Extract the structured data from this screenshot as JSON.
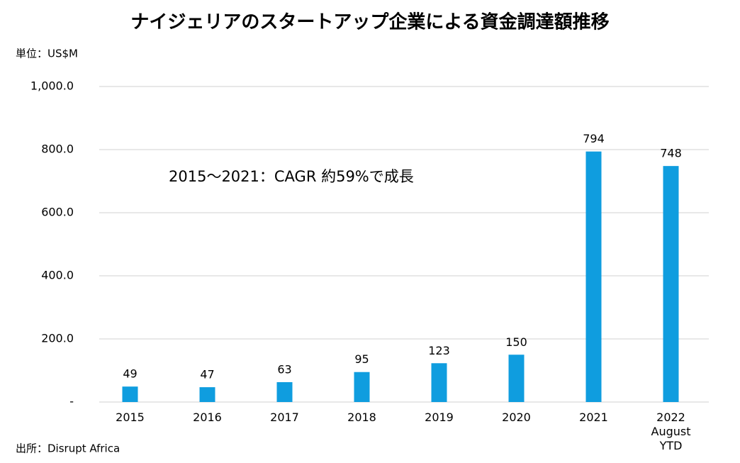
{
  "chart_data": {
    "type": "bar",
    "title": "ナイジェリアのスタートアップ企業による資金調達額推移",
    "unit_label": "単位：US$M",
    "annotation": "2015～2021：CAGR 約59%で成長",
    "source": "出所：Disrupt Africa",
    "categories": [
      "2015",
      "2016",
      "2017",
      "2018",
      "2019",
      "2020",
      "2021",
      "2022\nAugust\nYTD"
    ],
    "values": [
      49,
      47,
      63,
      95,
      123,
      150,
      794,
      748
    ],
    "color": "#0f9ddf",
    "ylim": [
      0,
      1000
    ],
    "yticks": [
      {
        "value": 0,
        "label": "-"
      },
      {
        "value": 200,
        "label": "200.0"
      },
      {
        "value": 400,
        "label": "400.0"
      },
      {
        "value": 600,
        "label": "600.0"
      },
      {
        "value": 800,
        "label": "800.0"
      },
      {
        "value": 1000,
        "label": "1,000.0"
      }
    ],
    "grid": true
  }
}
